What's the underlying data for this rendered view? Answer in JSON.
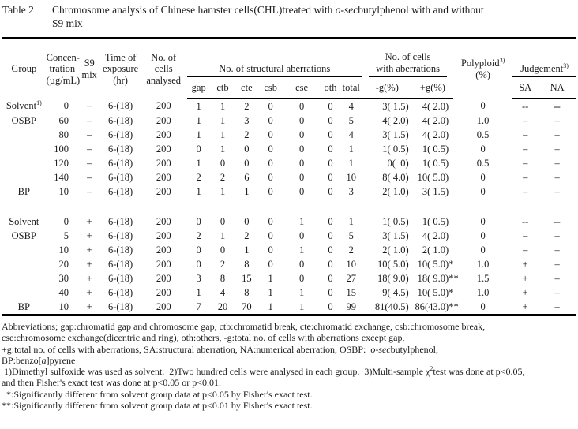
{
  "title": {
    "label": "Table 2",
    "line1_parts": [
      {
        "text": "Chromosome analysis of Chinese hamster cells(CHL)treated with  "
      },
      {
        "text": "o-sec",
        "style": "italic"
      },
      {
        "text": "butylphenol with and without"
      }
    ],
    "line2": "S9 mix"
  },
  "table": {
    "header": {
      "group": "Group",
      "concentration_lines": [
        "Concen-",
        "tration",
        "(µg/mL)"
      ],
      "s9_lines": [
        "S9",
        "mix"
      ],
      "time_lines": [
        "Time of",
        "exposure",
        "(hr)"
      ],
      "cells_lines": [
        "No. of",
        "cells",
        "analysed"
      ],
      "structural_label": "No. of structural aberrations",
      "structural_subs": [
        "gap",
        "ctb",
        "cte",
        "csb",
        "cse",
        "oth",
        "total"
      ],
      "aberr_cells_lines": [
        "No. of cells",
        "with aberrations"
      ],
      "aberr_cells_subs": [
        "-g(%)",
        "+g(%)"
      ],
      "polyploid_label": "Polyploid",
      "polyploid_sup": "3)",
      "polyploid_unit": "(%)",
      "judgement_label": "Judgement",
      "judgement_sup": "3)",
      "judgement_subs": [
        "SA",
        "NA"
      ]
    },
    "rows": [
      {
        "group": "Solvent",
        "group_sup": "1)",
        "conc": "0",
        "s9": "–",
        "time": "6-(18)",
        "cells": "200",
        "gap": "1",
        "ctb": "1",
        "cte": "2",
        "csb": "0",
        "cse": "0",
        "oth": "0",
        "total": "4",
        "mg": "3( 1.5)",
        "pg": "4( 2.0)",
        "poly": "0",
        "sa": "--",
        "na": "--"
      },
      {
        "group": "OSBP",
        "conc": "60",
        "s9": "–",
        "time": "6-(18)",
        "cells": "200",
        "gap": "1",
        "ctb": "1",
        "cte": "3",
        "csb": "0",
        "cse": "0",
        "oth": "0",
        "total": "5",
        "mg": "4( 2.0)",
        "pg": "4( 2.0)",
        "poly": "1.0",
        "sa": "–",
        "na": "–"
      },
      {
        "group": "",
        "conc": "80",
        "s9": "–",
        "time": "6-(18)",
        "cells": "200",
        "gap": "1",
        "ctb": "1",
        "cte": "2",
        "csb": "0",
        "cse": "0",
        "oth": "0",
        "total": "4",
        "mg": "3( 1.5)",
        "pg": "4( 2.0)",
        "poly": "0.5",
        "sa": "–",
        "na": "–"
      },
      {
        "group": "",
        "conc": "100",
        "s9": "–",
        "time": "6-(18)",
        "cells": "200",
        "gap": "0",
        "ctb": "1",
        "cte": "0",
        "csb": "0",
        "cse": "0",
        "oth": "0",
        "total": "1",
        "mg": "1( 0.5)",
        "pg": "1( 0.5)",
        "poly": "0",
        "sa": "–",
        "na": "–"
      },
      {
        "group": "",
        "conc": "120",
        "s9": "–",
        "time": "6-(18)",
        "cells": "200",
        "gap": "1",
        "ctb": "0",
        "cte": "0",
        "csb": "0",
        "cse": "0",
        "oth": "0",
        "total": "1",
        "mg": "0(  0)",
        "pg": "1( 0.5)",
        "poly": "0.5",
        "sa": "–",
        "na": "–"
      },
      {
        "group": "",
        "conc": "140",
        "s9": "–",
        "time": "6-(18)",
        "cells": "200",
        "gap": "2",
        "ctb": "2",
        "cte": "6",
        "csb": "0",
        "cse": "0",
        "oth": "0",
        "total": "10",
        "mg": "8( 4.0)",
        "pg": "10( 5.0)",
        "poly": "0",
        "sa": "–",
        "na": "–"
      },
      {
        "group": "BP",
        "conc": "10",
        "s9": "–",
        "time": "6-(18)",
        "cells": "200",
        "gap": "1",
        "ctb": "1",
        "cte": "1",
        "csb": "0",
        "cse": "0",
        "oth": "0",
        "total": "3",
        "mg": "2( 1.0)",
        "pg": "3( 1.5)",
        "poly": "0",
        "sa": "–",
        "na": "–"
      },
      {
        "spacer": true
      },
      {
        "group": "Solvent",
        "conc": "0",
        "s9": "+",
        "time": "6-(18)",
        "cells": "200",
        "gap": "0",
        "ctb": "0",
        "cte": "0",
        "csb": "0",
        "cse": "1",
        "oth": "0",
        "total": "1",
        "mg": "1( 0.5)",
        "pg": "1( 0.5)",
        "poly": "0",
        "sa": "--",
        "na": "--"
      },
      {
        "group": "OSBP",
        "conc": "5",
        "s9": "+",
        "time": "6-(18)",
        "cells": "200",
        "gap": "2",
        "ctb": "1",
        "cte": "2",
        "csb": "0",
        "cse": "0",
        "oth": "0",
        "total": "5",
        "mg": "3( 1.5)",
        "pg": "4( 2.0)",
        "poly": "0",
        "sa": "–",
        "na": "–"
      },
      {
        "group": "",
        "conc": "10",
        "s9": "+",
        "time": "6-(18)",
        "cells": "200",
        "gap": "0",
        "ctb": "0",
        "cte": "1",
        "csb": "0",
        "cse": "1",
        "oth": "0",
        "total": "2",
        "mg": "2( 1.0)",
        "pg": "2( 1.0)",
        "poly": "0",
        "sa": "–",
        "na": "–"
      },
      {
        "group": "",
        "conc": "20",
        "s9": "+",
        "time": "6-(18)",
        "cells": "200",
        "gap": "0",
        "ctb": "2",
        "cte": "8",
        "csb": "0",
        "cse": "0",
        "oth": "0",
        "total": "10",
        "mg": "10( 5.0)",
        "pg": "10( 5.0)",
        "pg_star": "*",
        "poly": "1.0",
        "sa": "+",
        "na": "–"
      },
      {
        "group": "",
        "conc": "30",
        "s9": "+",
        "time": "6-(18)",
        "cells": "200",
        "gap": "3",
        "ctb": "8",
        "cte": "15",
        "csb": "1",
        "cse": "0",
        "oth": "0",
        "total": "27",
        "mg": "18( 9.0)",
        "pg": "18( 9.0)",
        "pg_star": "**",
        "poly": "1.5",
        "sa": "+",
        "na": "–"
      },
      {
        "group": "",
        "conc": "40",
        "s9": "+",
        "time": "6-(18)",
        "cells": "200",
        "gap": "1",
        "ctb": "4",
        "cte": "8",
        "csb": "1",
        "cse": "1",
        "oth": "0",
        "total": "15",
        "mg": "9( 4.5)",
        "pg": "10( 5.0)",
        "pg_star": "*",
        "poly": "1.0",
        "sa": "+",
        "na": "–"
      },
      {
        "group": "BP",
        "conc": "10",
        "s9": "+",
        "time": "6-(18)",
        "cells": "200",
        "gap": "7",
        "ctb": "20",
        "cte": "70",
        "csb": "1",
        "cse": "1",
        "oth": "0",
        "total": "99",
        "mg": "81(40.5)",
        "pg": "86(43.0)",
        "pg_star": "**",
        "poly": "0",
        "sa": "+",
        "na": "–"
      }
    ]
  },
  "footnotes": [
    {
      "segments": [
        {
          "text": "Abbreviations; gap:chromatid gap and chromosome gap, ctb:chromatid break, cte:chromatid exchange, csb:chromosome break,"
        }
      ]
    },
    {
      "segments": [
        {
          "text": "cse:chromosome exchange(dicentric and ring), oth:others, -g:total no. of cells with aberrations except gap,"
        }
      ]
    },
    {
      "segments": [
        {
          "text": "+g:total no. of cells with aberrations, SA:structural aberration, NA:numerical aberration, OSBP:  "
        },
        {
          "text": "o-sec",
          "style": "italic"
        },
        {
          "text": "butylphenol,"
        }
      ]
    },
    {
      "segments": [
        {
          "text": "BP:benzo["
        },
        {
          "text": "a",
          "style": "italic"
        },
        {
          "text": "]pyrene"
        }
      ]
    },
    {
      "segments": [
        {
          "text": " 1)Dimethyl sulfoxide was used as solvent.  2)Two hundred cells were analysed in each group.  3)Multi-sample χ"
        },
        {
          "text": "2",
          "style": "sup"
        },
        {
          "text": "test was done at p<0.05,"
        }
      ]
    },
    {
      "segments": [
        {
          "text": "and then Fisher's exact test was done at p<0.05 or p<0.01."
        }
      ]
    },
    {
      "segments": [
        {
          "text": "  *:Significantly different from solvent group data at p<0.05 by Fisher's exact test."
        }
      ]
    },
    {
      "segments": [
        {
          "text": "**:Significantly different from solvent group data at p<0.01 by Fisher's exact test."
        }
      ]
    }
  ]
}
